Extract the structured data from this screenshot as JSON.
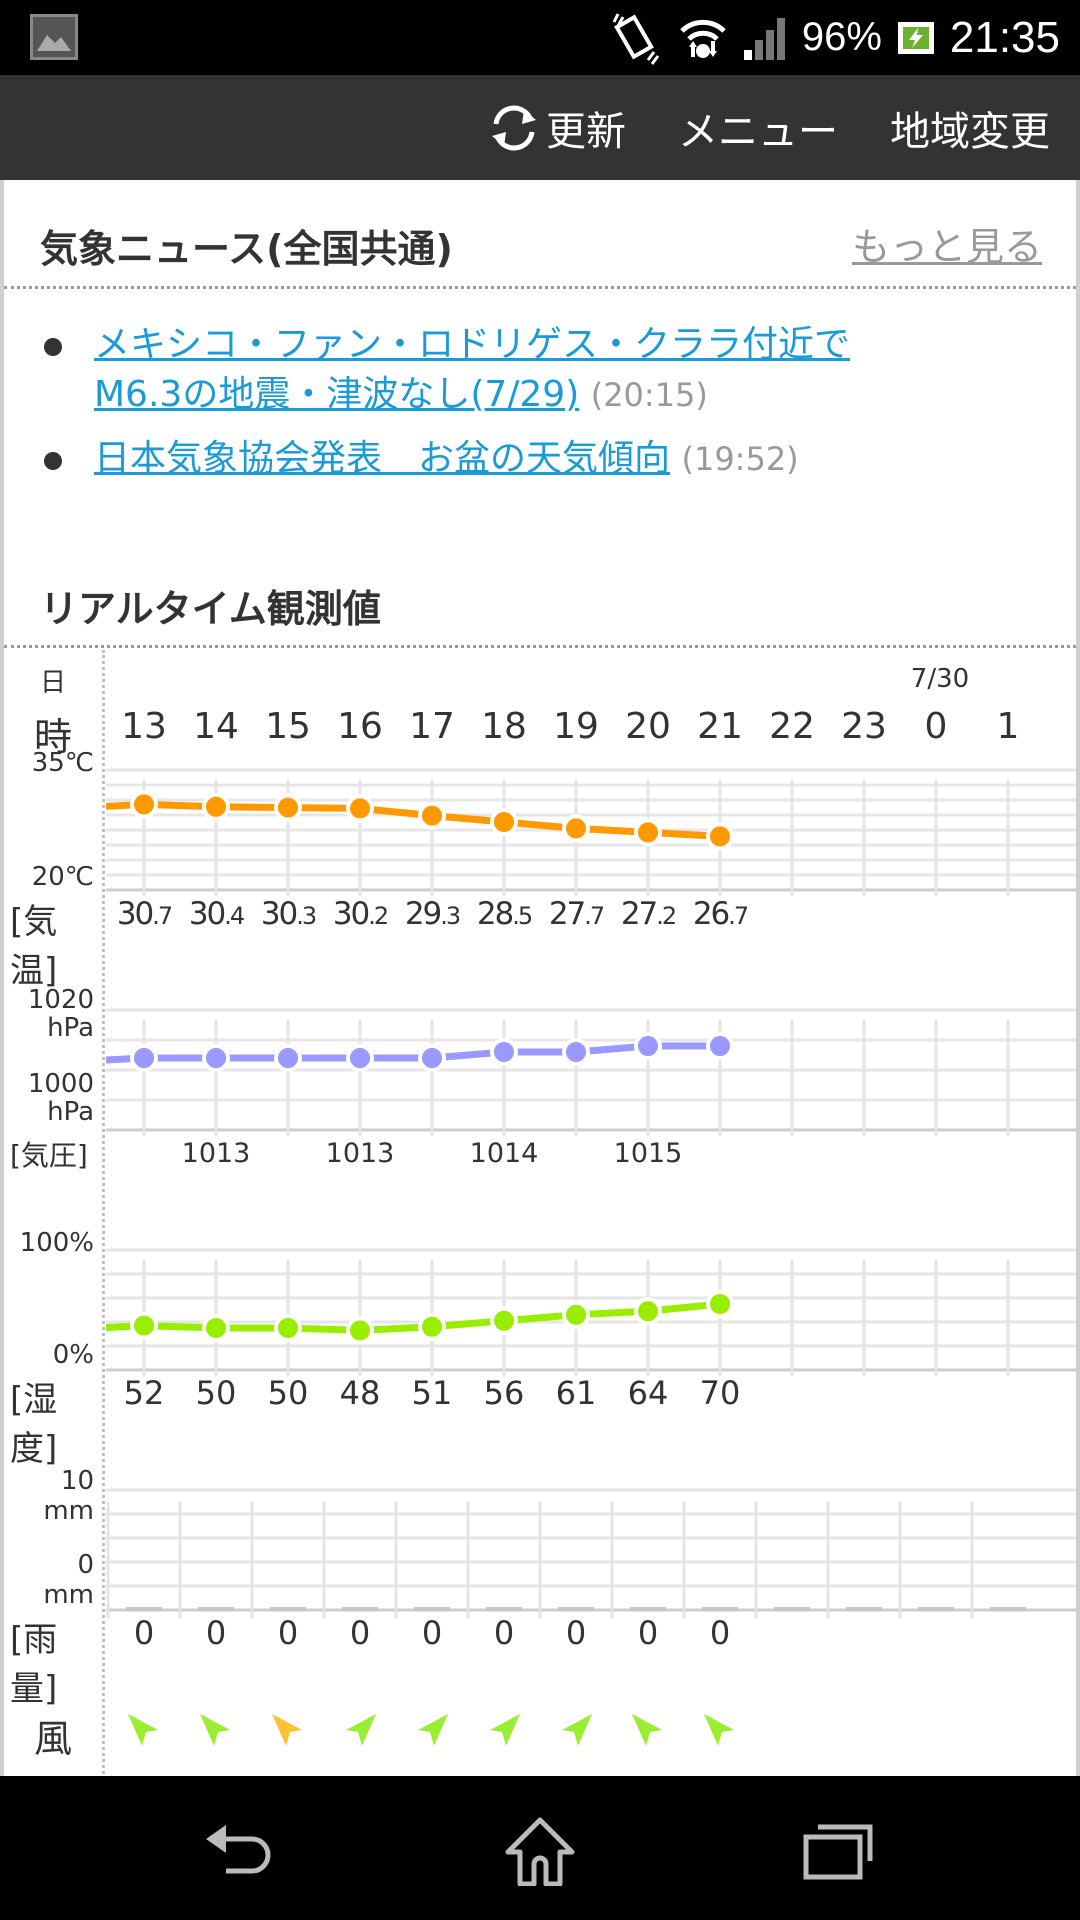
{
  "status_bar": {
    "battery_pct": "96%",
    "time": "21:35",
    "icons": [
      "gallery-notification-icon",
      "vibrate-icon",
      "wifi-icon",
      "signal-icon",
      "battery-charging-icon"
    ]
  },
  "toolbar": {
    "refresh_label": "更新",
    "menu_label": "メニュー",
    "region_label": "地域変更"
  },
  "news": {
    "title": "気象ニュース(全国共通)",
    "more_label": "もっと見る",
    "items": [
      {
        "line1": "メキシコ・ファン・ロドリゲス・クララ付近で",
        "line2": "M6.3の地震・津波なし(7/29)",
        "time": "(20:15)"
      },
      {
        "line1": "日本気象協会発表　お盆の天気傾向",
        "time": "(19:52)"
      }
    ]
  },
  "observations": {
    "title": "リアルタイム観測値",
    "day_label": "日",
    "hour_label": "時",
    "date_marker": "7/30",
    "hours": [
      "13",
      "14",
      "15",
      "16",
      "17",
      "18",
      "19",
      "20",
      "21",
      "22",
      "23",
      "0",
      "1"
    ],
    "temperature": {
      "label": "[気温]",
      "axis_top": "35℃",
      "axis_bottom": "20℃",
      "color": "#ff9900",
      "values_int": [
        "30",
        "30",
        "30",
        "30",
        "29",
        "28",
        "27",
        "27",
        "26"
      ],
      "values_dec": [
        ".7",
        ".4",
        ".3",
        ".2",
        ".3",
        ".5",
        ".7",
        ".2",
        ".7"
      ]
    },
    "pressure": {
      "label": "[気圧]",
      "axis_top": "1020",
      "axis_top_unit": "hPa",
      "axis_bottom": "1000",
      "axis_bottom_unit": "hPa",
      "color": "#9999ff",
      "values_shown": [
        "1013",
        "1013",
        "1014",
        "1015"
      ]
    },
    "humidity": {
      "label": "[湿度]",
      "axis_top": "100%",
      "axis_bottom": "0%",
      "color": "#99ee00",
      "values": [
        "52",
        "50",
        "50",
        "48",
        "51",
        "56",
        "61",
        "64",
        "70"
      ]
    },
    "rainfall": {
      "label": "[雨量]",
      "axis_top": "10",
      "axis_top_unit": "mm",
      "axis_bottom": "0",
      "axis_bottom_unit": "mm",
      "values": [
        "0",
        "0",
        "0",
        "0",
        "0",
        "0",
        "0",
        "0",
        "0"
      ]
    },
    "wind": {
      "label": "風",
      "directions": [
        "NW",
        "NW",
        "NW",
        "NE",
        "NE",
        "NE",
        "NE",
        "NW",
        "NW"
      ],
      "colors": [
        "#99ee33",
        "#99ee33",
        "#ffc233",
        "#99ee33",
        "#99ee33",
        "#99ee33",
        "#99ee33",
        "#99ee33",
        "#99ee33"
      ]
    }
  },
  "nav_bar": {
    "buttons": [
      "back",
      "home",
      "recent-apps"
    ]
  },
  "chart_data": [
    {
      "type": "line",
      "title": "気温",
      "x": [
        "13",
        "14",
        "15",
        "16",
        "17",
        "18",
        "19",
        "20",
        "21"
      ],
      "series": [
        {
          "name": "気温 (℃)",
          "values": [
            30.7,
            30.4,
            30.3,
            30.2,
            29.3,
            28.5,
            27.7,
            27.2,
            26.7
          ]
        }
      ],
      "ylim": [
        20,
        35
      ],
      "ylabel": "℃",
      "grid": true
    },
    {
      "type": "line",
      "title": "気圧",
      "x": [
        "13",
        "14",
        "15",
        "16",
        "17",
        "18",
        "19",
        "20",
        "21"
      ],
      "series": [
        {
          "name": "気圧 (hPa)",
          "values": [
            1013,
            1013,
            1013,
            1013,
            1013,
            1014,
            1014,
            1015,
            1015
          ]
        }
      ],
      "ylim": [
        1000,
        1020
      ],
      "ylabel": "hPa",
      "grid": true
    },
    {
      "type": "line",
      "title": "湿度",
      "x": [
        "13",
        "14",
        "15",
        "16",
        "17",
        "18",
        "19",
        "20",
        "21"
      ],
      "series": [
        {
          "name": "湿度 (%)",
          "values": [
            52,
            50,
            50,
            48,
            51,
            56,
            61,
            64,
            70
          ]
        }
      ],
      "ylim": [
        0,
        100
      ],
      "ylabel": "%",
      "grid": true
    },
    {
      "type": "bar",
      "title": "雨量",
      "categories": [
        "13",
        "14",
        "15",
        "16",
        "17",
        "18",
        "19",
        "20",
        "21"
      ],
      "values": [
        0,
        0,
        0,
        0,
        0,
        0,
        0,
        0,
        0
      ],
      "ylim": [
        0,
        10
      ],
      "ylabel": "mm",
      "grid": true
    }
  ]
}
